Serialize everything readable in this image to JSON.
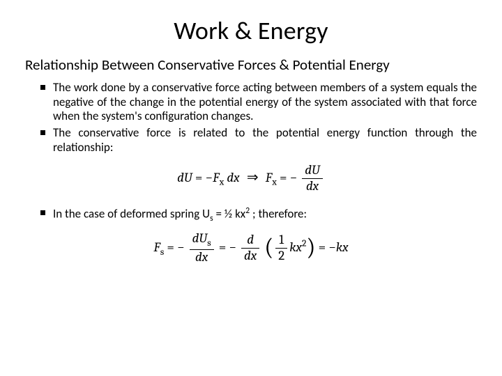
{
  "colors": {
    "text": "#000000",
    "background": "#ffffff"
  },
  "typography": {
    "title_fontsize": 36,
    "subtitle_fontsize": 21,
    "body_fontsize": 17,
    "equation_fontsize": 19,
    "equation_font": "Cambria Math / Times New Roman (serif, italic)"
  },
  "title": "Work & Energy",
  "subtitle": "Relationship Between Conservative Forces & Potential Energy",
  "bullets": {
    "b1": "The work done by a conservative force acting between members of a system equals the negative of the change in the potential energy of the system associated with that force when the system's configuration changes.",
    "b2": "The conservative force is related to the potential energy function through the relationship:",
    "b3_pre": "In the case of deformed spring U",
    "b3_sub": "s",
    "b3_mid": " = ½ kx",
    "b3_sup": "2",
    "b3_post": " ; therefore:"
  },
  "equation1": {
    "plain": "dU = −F_x dx  ⇒  F_x = − dU/dx",
    "lhs_d": "d",
    "lhs_U": "U",
    "eq": " = ",
    "minus": "−",
    "F": "F",
    "x": "x",
    "dx": " dx",
    "arrow": "⇒",
    "frac_num_d": "d",
    "frac_num_U": "U",
    "frac_den": "dx"
  },
  "equation2": {
    "plain": "F_s = − dU_s/dx = − d/dx (½ k x²) = −kx",
    "F": "F",
    "s": "s",
    "eq": " = ",
    "minus": "−",
    "dUs_num_d": "d",
    "dUs_num_U": "U",
    "dUs_den": "dx",
    "d_over_dx_num": "d",
    "d_over_dx_den": "dx",
    "half_num": "1",
    "half_den": "2",
    "k": "k",
    "x": "x",
    "sq": "2",
    "rhs": "kx"
  }
}
